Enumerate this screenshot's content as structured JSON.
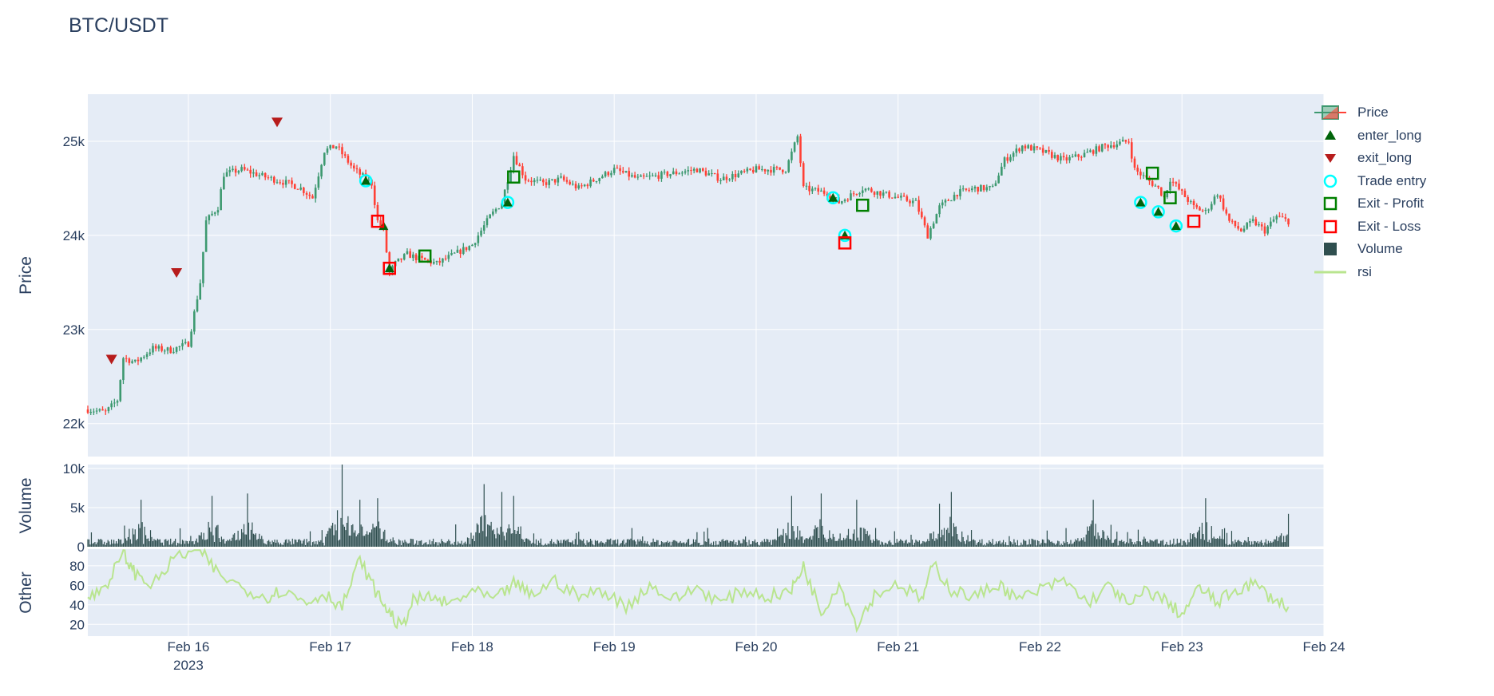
{
  "title": "BTC/USDT",
  "legend": [
    {
      "key": "price",
      "label": "Price"
    },
    {
      "key": "enter_long",
      "label": "enter_long"
    },
    {
      "key": "exit_long",
      "label": "exit_long"
    },
    {
      "key": "trade_entry",
      "label": "Trade entry"
    },
    {
      "key": "exit_profit",
      "label": "Exit - Profit"
    },
    {
      "key": "exit_loss",
      "label": "Exit - Loss"
    },
    {
      "key": "volume",
      "label": "Volume"
    },
    {
      "key": "rsi",
      "label": "rsi"
    }
  ],
  "colors": {
    "plot_bg": "#e5ecf6",
    "grid": "#ffffff",
    "increasing": "#3d9970",
    "decreasing": "#ff4136",
    "enter_long": "#00640a",
    "exit_long": "#b71c1c",
    "trade_entry": "cyan",
    "exit_profit": "green",
    "exit_loss": "red",
    "volume": "#2f4f4f",
    "rsi": "#b9e58f",
    "text": "#2a3f5f"
  },
  "chart_data": [
    {
      "type": "candlestick",
      "panel": "price",
      "ylabel": "Price",
      "ylim": [
        21650,
        25500
      ],
      "xlim": [
        "2023-02-15 07:00",
        "2023-02-24 00:00"
      ],
      "x_ticks": [
        "Feb 16",
        "Feb 17",
        "Feb 18",
        "Feb 19",
        "Feb 20",
        "Feb 21",
        "Feb 22",
        "Feb 23",
        "Feb 24"
      ],
      "x_tick_year": "2023",
      "y_ticks": [
        22000,
        23000,
        24000,
        25000
      ],
      "y_tick_labels": [
        "22k",
        "23k",
        "24k",
        "25k"
      ],
      "close_path": [
        [
          "2023-02-15 07:00",
          22150
        ],
        [
          "2023-02-15 10:00",
          22120
        ],
        [
          "2023-02-15 12:00",
          22250
        ],
        [
          "2023-02-15 13:00",
          22700
        ],
        [
          "2023-02-15 15:00",
          22650
        ],
        [
          "2023-02-15 18:00",
          22800
        ],
        [
          "2023-02-15 21:00",
          22780
        ],
        [
          "2023-02-16 00:00",
          22850
        ],
        [
          "2023-02-16 02:00",
          23500
        ],
        [
          "2023-02-16 03:00",
          24150
        ],
        [
          "2023-02-16 05:00",
          24300
        ],
        [
          "2023-02-16 06:00",
          24650
        ],
        [
          "2023-02-16 09:00",
          24700
        ],
        [
          "2023-02-16 13:00",
          24620
        ],
        [
          "2023-02-16 17:00",
          24550
        ],
        [
          "2023-02-16 19:00",
          24500
        ],
        [
          "2023-02-16 21:00",
          24400
        ],
        [
          "2023-02-16 23:00",
          24900
        ],
        [
          "2023-02-17 01:00",
          24950
        ],
        [
          "2023-02-17 04:00",
          24700
        ],
        [
          "2023-02-17 07:00",
          24550
        ],
        [
          "2023-02-17 08:00",
          24150
        ],
        [
          "2023-02-17 09:00",
          24050
        ],
        [
          "2023-02-17 10:00",
          23600
        ],
        [
          "2023-02-17 11:00",
          23700
        ],
        [
          "2023-02-17 13:00",
          23800
        ],
        [
          "2023-02-17 15:00",
          23750
        ],
        [
          "2023-02-17 18:00",
          23700
        ],
        [
          "2023-02-17 21:00",
          23800
        ],
        [
          "2023-02-18 00:00",
          23900
        ],
        [
          "2023-02-18 03:00",
          24200
        ],
        [
          "2023-02-18 05:00",
          24350
        ],
        [
          "2023-02-18 07:00",
          24850
        ],
        [
          "2023-02-18 09:00",
          24600
        ],
        [
          "2023-02-18 12:00",
          24550
        ],
        [
          "2023-02-18 15:00",
          24600
        ],
        [
          "2023-02-18 18:00",
          24500
        ],
        [
          "2023-02-18 21:00",
          24600
        ],
        [
          "2023-02-19 00:00",
          24700
        ],
        [
          "2023-02-19 04:00",
          24600
        ],
        [
          "2023-02-19 09:00",
          24650
        ],
        [
          "2023-02-19 14:00",
          24700
        ],
        [
          "2023-02-19 18:00",
          24600
        ],
        [
          "2023-02-20 00:00",
          24700
        ],
        [
          "2023-02-20 05:00",
          24700
        ],
        [
          "2023-02-20 07:00",
          25050
        ],
        [
          "2023-02-20 08:00",
          24500
        ],
        [
          "2023-02-20 12:00",
          24450
        ],
        [
          "2023-02-20 14:00",
          24350
        ],
        [
          "2023-02-20 18:00",
          24500
        ],
        [
          "2023-02-21 00:00",
          24400
        ],
        [
          "2023-02-21 03:00",
          24350
        ],
        [
          "2023-02-21 05:00",
          24000
        ],
        [
          "2023-02-21 07:00",
          24300
        ],
        [
          "2023-02-21 10:00",
          24450
        ],
        [
          "2023-02-21 13:00",
          24500
        ],
        [
          "2023-02-21 16:00",
          24500
        ],
        [
          "2023-02-21 18:00",
          24800
        ],
        [
          "2023-02-21 21:00",
          24950
        ],
        [
          "2023-02-22 00:00",
          24900
        ],
        [
          "2023-02-22 04:00",
          24800
        ],
        [
          "2023-02-22 07:00",
          24850
        ],
        [
          "2023-02-22 11:00",
          24950
        ],
        [
          "2023-02-22 15:00",
          25000
        ],
        [
          "2023-02-22 16:00",
          24700
        ],
        [
          "2023-02-22 18:00",
          24600
        ],
        [
          "2023-02-22 20:00",
          24500
        ],
        [
          "2023-02-22 21:00",
          24400
        ],
        [
          "2023-02-22 22:00",
          24600
        ],
        [
          "2023-02-23 00:00",
          24450
        ],
        [
          "2023-02-23 02:00",
          24300
        ],
        [
          "2023-02-23 04:00",
          24250
        ],
        [
          "2023-02-23 06:00",
          24450
        ],
        [
          "2023-02-23 08:00",
          24150
        ],
        [
          "2023-02-23 10:00",
          24050
        ],
        [
          "2023-02-23 12:00",
          24150
        ],
        [
          "2023-02-23 14:00",
          24050
        ],
        [
          "2023-02-23 16:00",
          24200
        ],
        [
          "2023-02-23 18:00",
          24150
        ]
      ],
      "markers": {
        "enter_long": [
          [
            "2023-02-17 06:00",
            24580
          ],
          [
            "2023-02-17 09:00",
            24100
          ],
          [
            "2023-02-17 10:00",
            23650
          ],
          [
            "2023-02-18 06:00",
            24350
          ],
          [
            "2023-02-20 13:00",
            24400
          ],
          [
            "2023-02-20 15:00",
            24000
          ],
          [
            "2023-02-22 17:00",
            24350
          ],
          [
            "2023-02-22 20:00",
            24250
          ],
          [
            "2023-02-22 23:00",
            24100
          ]
        ],
        "exit_long": [
          [
            "2023-02-15 11:00",
            22680
          ],
          [
            "2023-02-15 22:00",
            23600
          ],
          [
            "2023-02-16 15:00",
            25200
          ]
        ],
        "trade_entry": [
          [
            "2023-02-17 06:00",
            24580
          ],
          [
            "2023-02-18 06:00",
            24350
          ],
          [
            "2023-02-20 13:00",
            24400
          ],
          [
            "2023-02-20 15:00",
            24000
          ],
          [
            "2023-02-22 17:00",
            24350
          ],
          [
            "2023-02-22 20:00",
            24250
          ],
          [
            "2023-02-22 23:00",
            24100
          ]
        ],
        "exit_profit": [
          [
            "2023-02-17 16:00",
            23780
          ],
          [
            "2023-02-18 07:00",
            24620
          ],
          [
            "2023-02-20 18:00",
            24320
          ],
          [
            "2023-02-22 19:00",
            24660
          ],
          [
            "2023-02-22 22:00",
            24400
          ]
        ],
        "exit_loss": [
          [
            "2023-02-17 08:00",
            24150
          ],
          [
            "2023-02-17 10:00",
            23650
          ],
          [
            "2023-02-20 15:00",
            23920
          ],
          [
            "2023-02-23 02:00",
            24150
          ]
        ]
      }
    },
    {
      "type": "bar",
      "panel": "volume",
      "ylabel": "Volume",
      "ylim": [
        0,
        10500
      ],
      "y_ticks": [
        0,
        5000,
        10000
      ],
      "y_tick_labels": [
        "0",
        "5k",
        "10k"
      ],
      "spikes": [
        [
          "2023-02-15 16:00",
          6000
        ],
        [
          "2023-02-16 04:00",
          6500
        ],
        [
          "2023-02-16 10:00",
          6800
        ],
        [
          "2023-02-17 02:00",
          10500
        ],
        [
          "2023-02-17 05:00",
          6000
        ],
        [
          "2023-02-17 08:00",
          6200
        ],
        [
          "2023-02-18 02:00",
          8000
        ],
        [
          "2023-02-18 05:00",
          7000
        ],
        [
          "2023-02-18 07:00",
          6500
        ],
        [
          "2023-02-20 06:00",
          6500
        ],
        [
          "2023-02-20 11:00",
          6800
        ],
        [
          "2023-02-20 17:00",
          6000
        ],
        [
          "2023-02-21 07:00",
          5500
        ],
        [
          "2023-02-21 09:00",
          7000
        ],
        [
          "2023-02-22 09:00",
          6000
        ],
        [
          "2023-02-23 04:00",
          6200
        ],
        [
          "2023-02-23 18:00",
          4200
        ]
      ]
    },
    {
      "type": "line",
      "panel": "other",
      "ylabel": "Other",
      "ylim": [
        8,
        97
      ],
      "y_ticks": [
        20,
        40,
        60,
        80
      ],
      "y_tick_labels": [
        "20",
        "40",
        "60",
        "80"
      ],
      "series": [
        {
          "name": "rsi",
          "x": [
            "2023-02-15 07:00",
            "2023-02-15 10:00",
            "2023-02-15 13:00",
            "2023-02-15 15:00",
            "2023-02-15 18:00",
            "2023-02-15 22:00",
            "2023-02-16 02:00",
            "2023-02-16 05:00",
            "2023-02-16 09:00",
            "2023-02-16 13:00",
            "2023-02-16 16:00",
            "2023-02-16 20:00",
            "2023-02-16 23:00",
            "2023-02-17 02:00",
            "2023-02-17 05:00",
            "2023-02-17 08:00",
            "2023-02-17 10:00",
            "2023-02-17 12:00",
            "2023-02-17 14:00",
            "2023-02-17 17:00",
            "2023-02-17 20:00",
            "2023-02-18 00:00",
            "2023-02-18 04:00",
            "2023-02-18 07:00",
            "2023-02-18 10:00",
            "2023-02-18 14:00",
            "2023-02-18 18:00",
            "2023-02-18 22:00",
            "2023-02-19 02:00",
            "2023-02-19 06:00",
            "2023-02-19 10:00",
            "2023-02-19 14:00",
            "2023-02-19 18:00",
            "2023-02-19 22:00",
            "2023-02-20 02:00",
            "2023-02-20 06:00",
            "2023-02-20 08:00",
            "2023-02-20 11:00",
            "2023-02-20 14:00",
            "2023-02-20 17:00",
            "2023-02-20 20:00",
            "2023-02-21 00:00",
            "2023-02-21 04:00",
            "2023-02-21 06:00",
            "2023-02-21 09:00",
            "2023-02-21 13:00",
            "2023-02-21 17:00",
            "2023-02-21 20:00",
            "2023-02-22 00:00",
            "2023-02-22 04:00",
            "2023-02-22 08:00",
            "2023-02-22 12:00",
            "2023-02-22 15:00",
            "2023-02-22 18:00",
            "2023-02-22 21:00",
            "2023-02-23 00:00",
            "2023-02-23 03:00",
            "2023-02-23 06:00",
            "2023-02-23 09:00",
            "2023-02-23 12:00",
            "2023-02-23 15:00",
            "2023-02-23 18:00"
          ],
          "values": [
            45,
            60,
            92,
            72,
            60,
            90,
            96,
            72,
            58,
            48,
            55,
            42,
            52,
            38,
            86,
            50,
            32,
            16,
            44,
            48,
            40,
            54,
            45,
            62,
            50,
            65,
            48,
            55,
            38,
            60,
            45,
            58,
            42,
            55,
            48,
            55,
            80,
            32,
            62,
            20,
            50,
            62,
            45,
            82,
            55,
            48,
            62,
            45,
            55,
            65,
            42,
            60,
            38,
            55,
            45,
            30,
            58,
            42,
            55,
            62,
            48,
            38
          ]
        }
      ]
    }
  ]
}
